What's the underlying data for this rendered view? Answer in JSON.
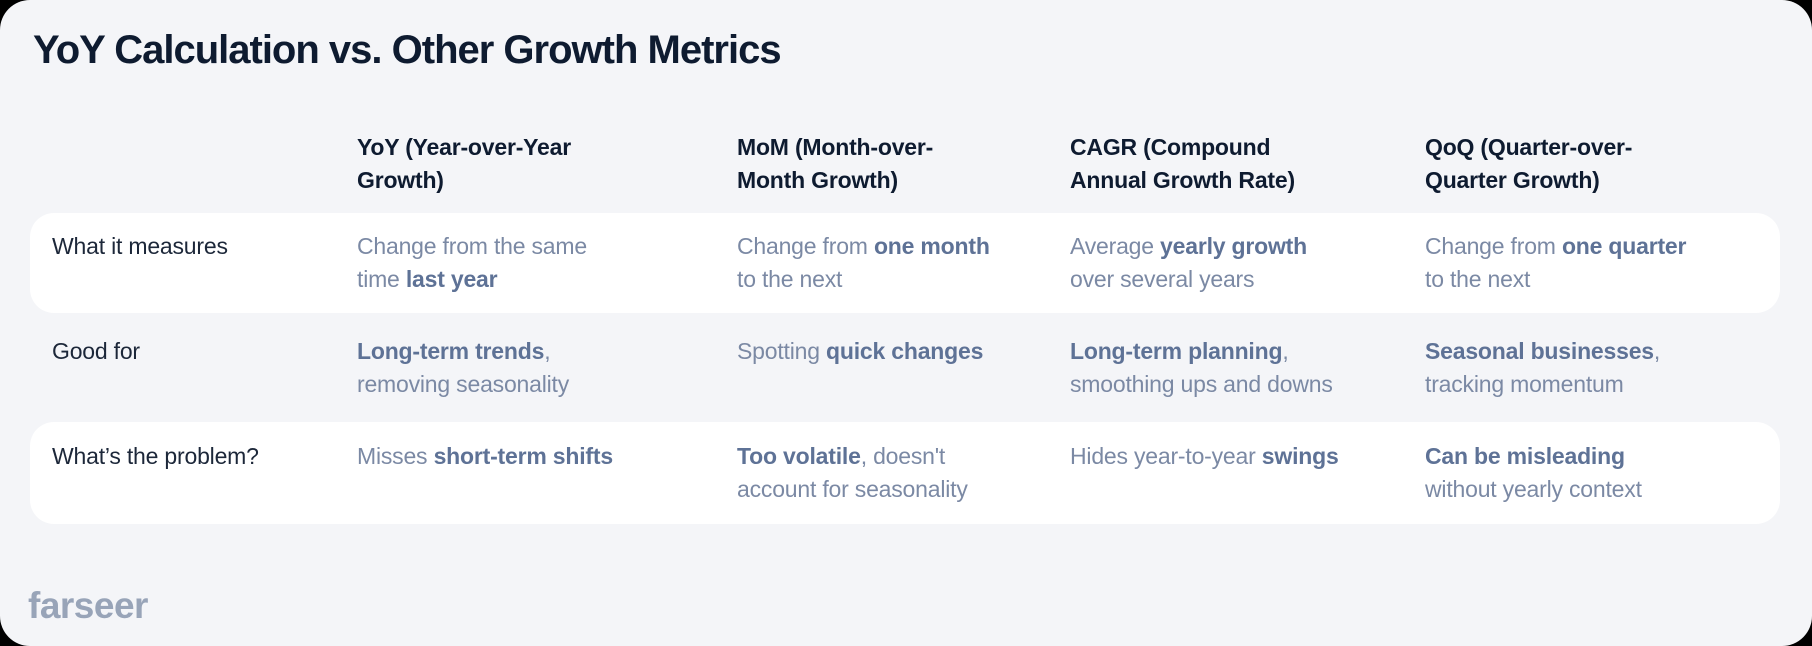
{
  "page": {
    "title": "YoY Calculation vs. Other Growth Metrics",
    "logo": "farseer"
  },
  "colors": {
    "bg": "#f4f5f8",
    "card": "#ffffff",
    "title": "#0e1b30",
    "label": "#1c2739",
    "cell": "#7b89a4",
    "cellBold": "#5e7296",
    "logo": "#98a4b8",
    "frame": "#000000"
  },
  "table": {
    "columns": [
      "YoY (Year-over-Year Growth)",
      "MoM (Month-over-Month Growth)",
      "CAGR (Compound Annual Growth Rate)",
      "QoQ (Quarter-over-Quarter Growth)"
    ],
    "rows": [
      {
        "label": "What it measures",
        "cells": [
          [
            {
              "t": "Change from the same time "
            },
            {
              "t": "last year",
              "b": true
            }
          ],
          [
            {
              "t": "Change from "
            },
            {
              "t": "one month",
              "b": true
            },
            {
              "t": " to the next"
            }
          ],
          [
            {
              "t": "Average "
            },
            {
              "t": "yearly growth",
              "b": true
            },
            {
              "t": " over several years"
            }
          ],
          [
            {
              "t": "Change from "
            },
            {
              "t": "one quarter",
              "b": true
            },
            {
              "t": " to the next"
            }
          ]
        ]
      },
      {
        "label": "Good for",
        "cells": [
          [
            {
              "t": "Long-term trends",
              "b": true
            },
            {
              "t": ", removing seasonality"
            }
          ],
          [
            {
              "t": "Spotting "
            },
            {
              "t": "quick changes",
              "b": true
            }
          ],
          [
            {
              "t": "Long-term planning",
              "b": true
            },
            {
              "t": ", smoothing ups and downs"
            }
          ],
          [
            {
              "t": "Seasonal businesses",
              "b": true
            },
            {
              "t": ", tracking momentum"
            }
          ]
        ]
      },
      {
        "label": "What’s the problem?",
        "cells": [
          [
            {
              "t": "Misses "
            },
            {
              "t": "short-term shifts",
              "b": true
            }
          ],
          [
            {
              "t": "Too volatile",
              "b": true
            },
            {
              "t": ", doesn't account for seasonality"
            }
          ],
          [
            {
              "t": "Hides year-to-year "
            },
            {
              "t": "swings",
              "b": true
            }
          ],
          [
            {
              "t": "Can be misleading",
              "b": true
            },
            {
              "t": " without yearly context"
            }
          ]
        ]
      }
    ]
  }
}
